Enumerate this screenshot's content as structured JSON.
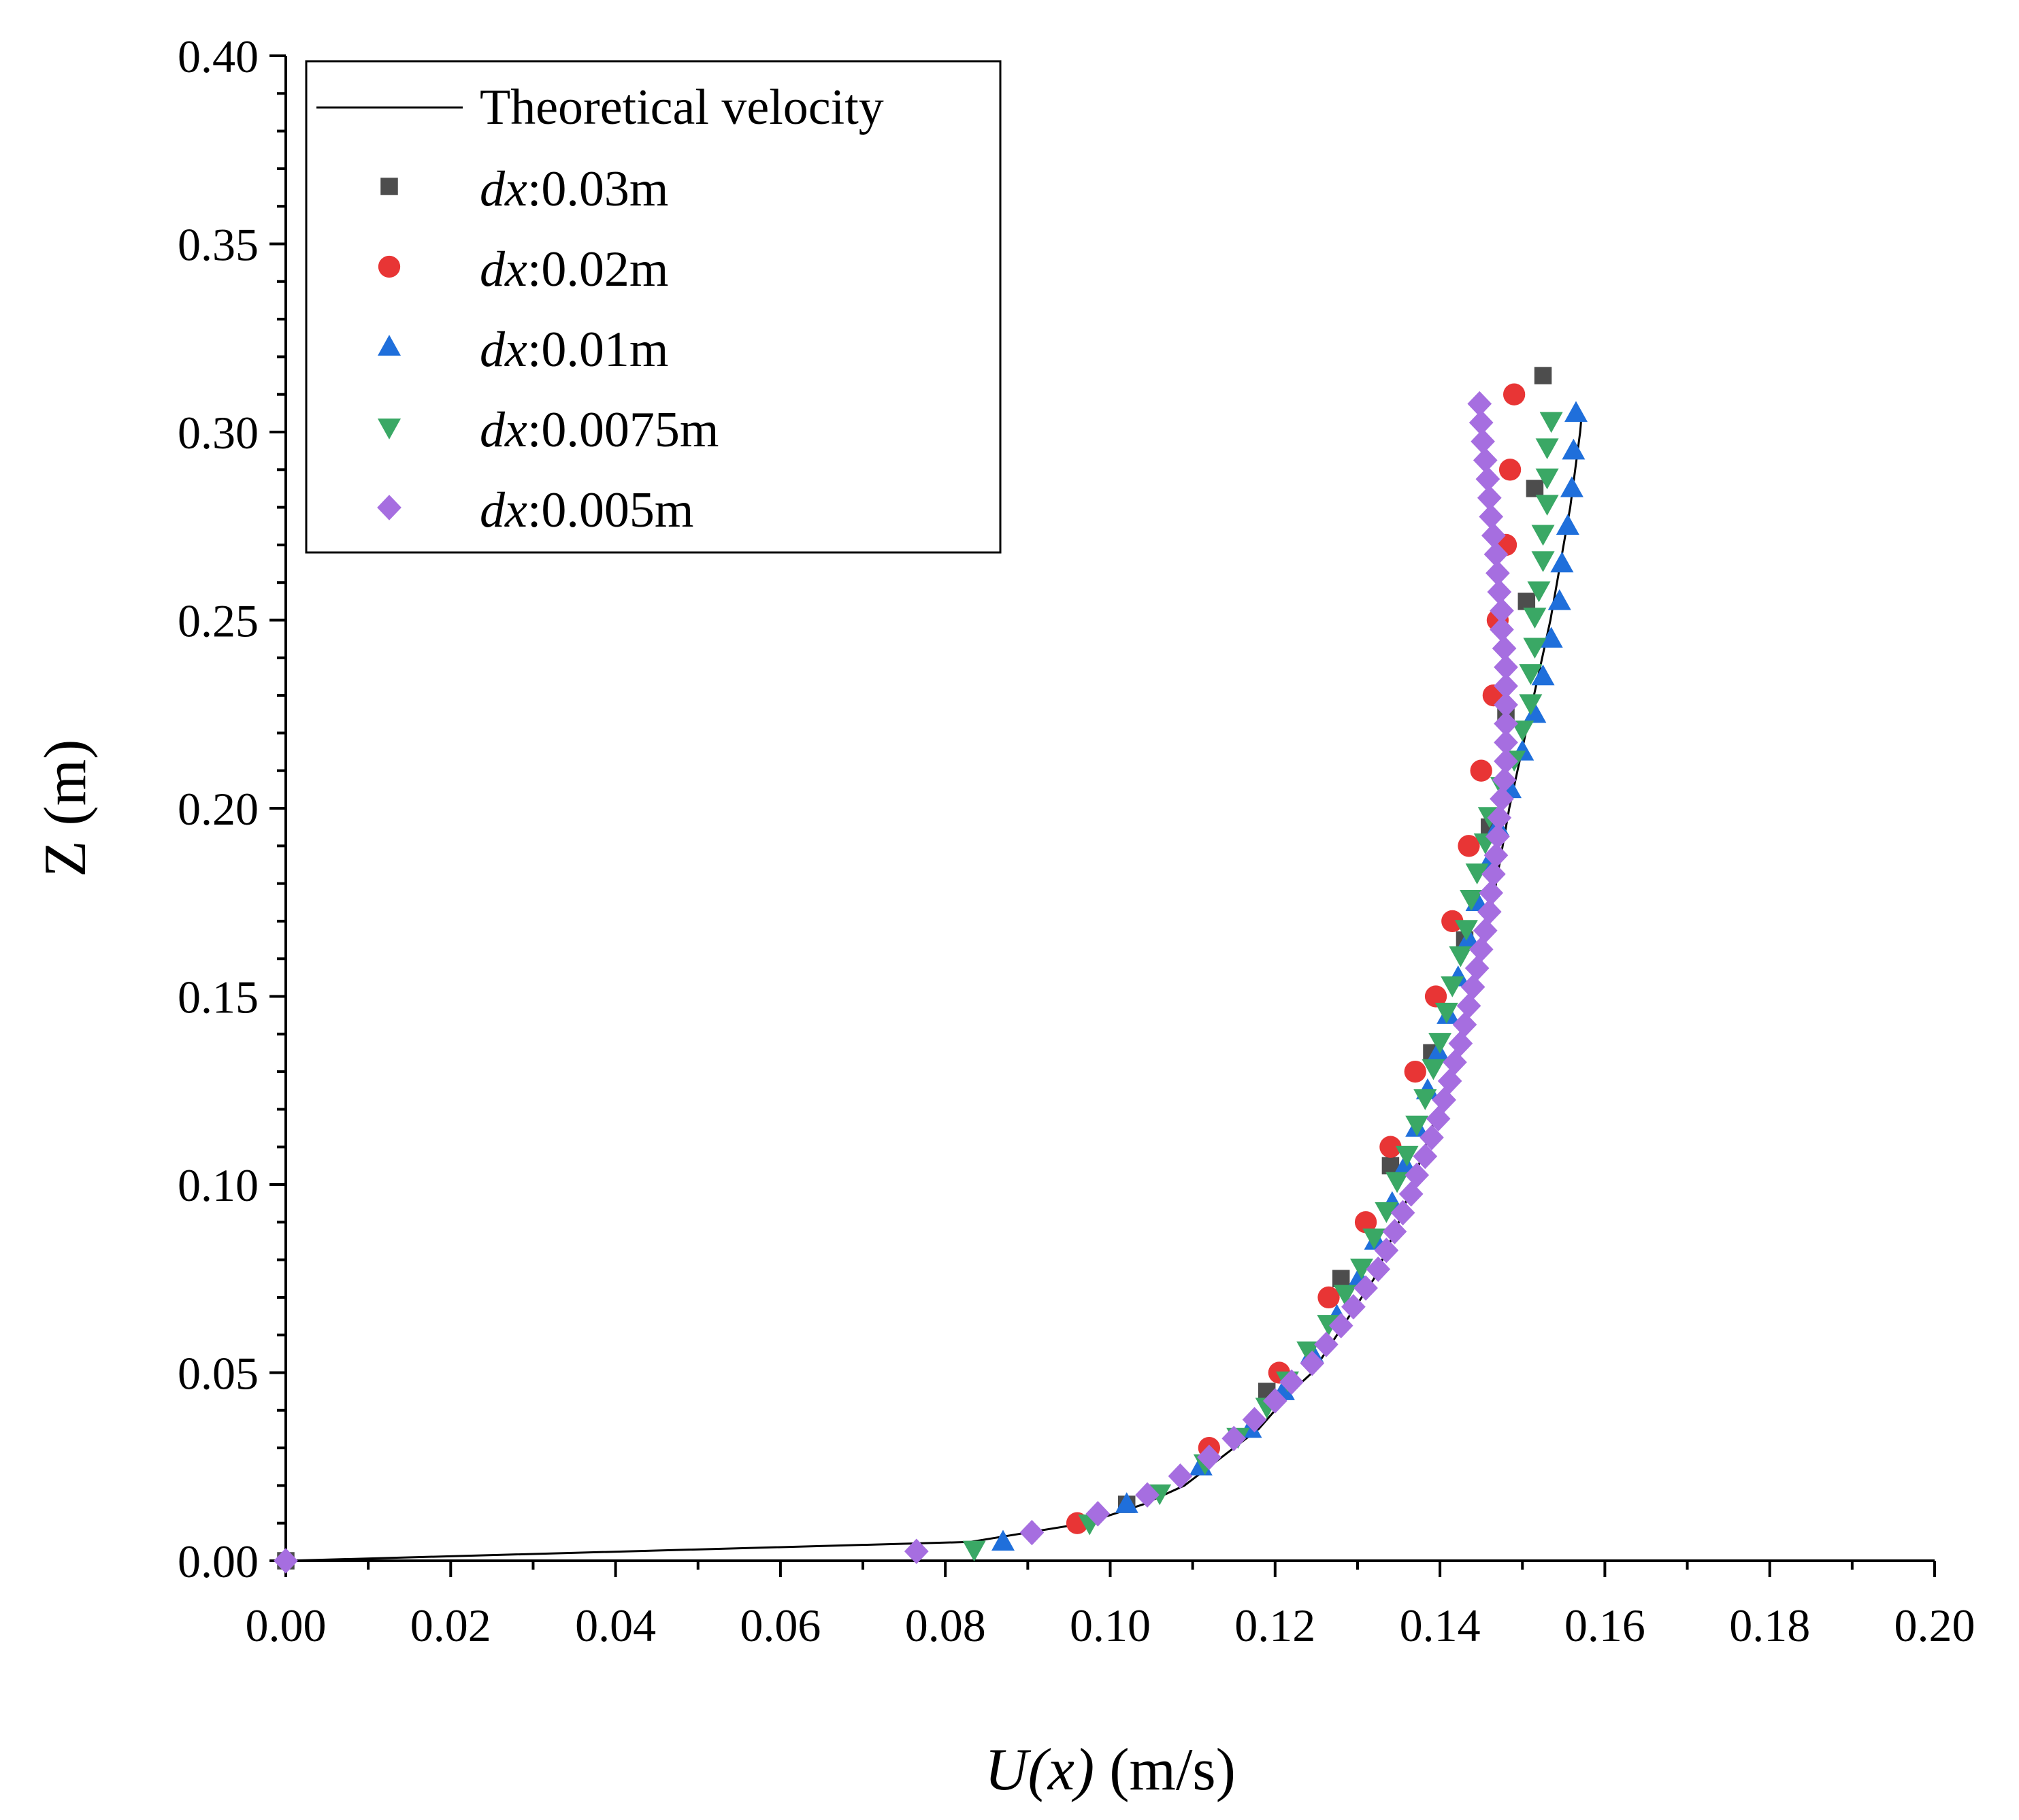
{
  "chart_data": {
    "type": "scatter",
    "title": "",
    "xlabel_italic": "U(x)",
    "xlabel_unit": " (m/s)",
    "ylabel": "Z (m)",
    "xlim": [
      0,
      0.2
    ],
    "ylim": [
      0,
      0.4
    ],
    "x_ticks": [
      "0.00",
      "0.02",
      "0.04",
      "0.06",
      "0.08",
      "0.10",
      "0.12",
      "0.14",
      "0.16",
      "0.18",
      "0.20"
    ],
    "y_ticks": [
      "0.00",
      "0.05",
      "0.10",
      "0.15",
      "0.20",
      "0.25",
      "0.30",
      "0.35",
      "0.40"
    ],
    "legend_position": "top-left",
    "series": [
      {
        "name": "Theoretical velocity",
        "kind": "line",
        "color": "#000000",
        "points": [
          [
            0.0,
            0.0
          ],
          [
            0.083,
            0.005
          ],
          [
            0.097,
            0.01
          ],
          [
            0.104,
            0.015
          ],
          [
            0.109,
            0.02
          ],
          [
            0.112,
            0.025
          ],
          [
            0.115,
            0.03
          ],
          [
            0.118,
            0.035
          ],
          [
            0.12,
            0.04
          ],
          [
            0.122,
            0.045
          ],
          [
            0.1245,
            0.05
          ],
          [
            0.126,
            0.055
          ],
          [
            0.1275,
            0.06
          ],
          [
            0.129,
            0.065
          ],
          [
            0.1305,
            0.07
          ],
          [
            0.132,
            0.075
          ],
          [
            0.133,
            0.08
          ],
          [
            0.134,
            0.085
          ],
          [
            0.135,
            0.09
          ],
          [
            0.1358,
            0.095
          ],
          [
            0.1366,
            0.1
          ],
          [
            0.1374,
            0.105
          ],
          [
            0.1382,
            0.11
          ],
          [
            0.139,
            0.115
          ],
          [
            0.1398,
            0.12
          ],
          [
            0.1406,
            0.125
          ],
          [
            0.1412,
            0.13
          ],
          [
            0.1418,
            0.135
          ],
          [
            0.1424,
            0.14
          ],
          [
            0.143,
            0.145
          ],
          [
            0.1436,
            0.15
          ],
          [
            0.1442,
            0.155
          ],
          [
            0.1448,
            0.16
          ],
          [
            0.1454,
            0.165
          ],
          [
            0.146,
            0.17
          ],
          [
            0.1468,
            0.18
          ],
          [
            0.1476,
            0.19
          ],
          [
            0.1484,
            0.2
          ],
          [
            0.1494,
            0.21
          ],
          [
            0.1504,
            0.22
          ],
          [
            0.1514,
            0.23
          ],
          [
            0.1524,
            0.24
          ],
          [
            0.1534,
            0.25
          ],
          [
            0.1542,
            0.26
          ],
          [
            0.155,
            0.27
          ],
          [
            0.1558,
            0.28
          ],
          [
            0.1564,
            0.29
          ],
          [
            0.157,
            0.3
          ],
          [
            0.1572,
            0.305
          ]
        ]
      },
      {
        "name": "0.03m",
        "prefix": "dx",
        "kind": "scatter",
        "marker": "square",
        "color": "#4d4d4d",
        "points": [
          [
            0.0,
            0.0
          ],
          [
            0.102,
            0.015
          ],
          [
            0.119,
            0.045
          ],
          [
            0.128,
            0.075
          ],
          [
            0.134,
            0.105
          ],
          [
            0.139,
            0.135
          ],
          [
            0.143,
            0.165
          ],
          [
            0.146,
            0.195
          ],
          [
            0.148,
            0.225
          ],
          [
            0.1505,
            0.255
          ],
          [
            0.1515,
            0.285
          ],
          [
            0.1525,
            0.315
          ]
        ]
      },
      {
        "name": "0.02m",
        "prefix": "dx",
        "kind": "scatter",
        "marker": "circle",
        "color": "#e83535",
        "points": [
          [
            0.096,
            0.01
          ],
          [
            0.112,
            0.03
          ],
          [
            0.1205,
            0.05
          ],
          [
            0.1265,
            0.07
          ],
          [
            0.131,
            0.09
          ],
          [
            0.134,
            0.11
          ],
          [
            0.137,
            0.13
          ],
          [
            0.1395,
            0.15
          ],
          [
            0.1415,
            0.17
          ],
          [
            0.1435,
            0.19
          ],
          [
            0.145,
            0.21
          ],
          [
            0.1465,
            0.23
          ],
          [
            0.147,
            0.25
          ],
          [
            0.148,
            0.27
          ],
          [
            0.1485,
            0.29
          ],
          [
            0.149,
            0.31
          ]
        ]
      },
      {
        "name": "0.01m",
        "prefix": "dx",
        "kind": "scatter",
        "marker": "triangle-up",
        "color": "#1f6fdb",
        "points": [
          [
            0.087,
            0.005
          ],
          [
            0.102,
            0.015
          ],
          [
            0.111,
            0.025
          ],
          [
            0.117,
            0.035
          ],
          [
            0.121,
            0.045
          ],
          [
            0.1245,
            0.055
          ],
          [
            0.1275,
            0.065
          ],
          [
            0.1302,
            0.075
          ],
          [
            0.1322,
            0.085
          ],
          [
            0.1342,
            0.095
          ],
          [
            0.1358,
            0.105
          ],
          [
            0.1372,
            0.115
          ],
          [
            0.1385,
            0.125
          ],
          [
            0.1398,
            0.135
          ],
          [
            0.141,
            0.145
          ],
          [
            0.1422,
            0.155
          ],
          [
            0.1435,
            0.165
          ],
          [
            0.1445,
            0.175
          ],
          [
            0.1458,
            0.185
          ],
          [
            0.147,
            0.195
          ],
          [
            0.1485,
            0.205
          ],
          [
            0.15,
            0.215
          ],
          [
            0.1515,
            0.225
          ],
          [
            0.1525,
            0.235
          ],
          [
            0.1535,
            0.245
          ],
          [
            0.1545,
            0.255
          ],
          [
            0.1548,
            0.265
          ],
          [
            0.1555,
            0.275
          ],
          [
            0.156,
            0.285
          ],
          [
            0.1562,
            0.295
          ],
          [
            0.1565,
            0.305
          ]
        ]
      },
      {
        "name": "0.0075m",
        "prefix": "dx",
        "kind": "scatter",
        "marker": "triangle-down",
        "color": "#3aa865",
        "points": [
          [
            0.0835,
            0.003
          ],
          [
            0.0975,
            0.01
          ],
          [
            0.106,
            0.018
          ],
          [
            0.1115,
            0.026
          ],
          [
            0.1155,
            0.033
          ],
          [
            0.119,
            0.041
          ],
          [
            0.1215,
            0.048
          ],
          [
            0.124,
            0.056
          ],
          [
            0.1265,
            0.063
          ],
          [
            0.1285,
            0.071
          ],
          [
            0.1305,
            0.078
          ],
          [
            0.132,
            0.086
          ],
          [
            0.1335,
            0.093
          ],
          [
            0.1348,
            0.101
          ],
          [
            0.136,
            0.108
          ],
          [
            0.1372,
            0.116
          ],
          [
            0.1382,
            0.123
          ],
          [
            0.1392,
            0.131
          ],
          [
            0.14,
            0.138
          ],
          [
            0.1408,
            0.146
          ],
          [
            0.1415,
            0.153
          ],
          [
            0.1425,
            0.161
          ],
          [
            0.1432,
            0.168
          ],
          [
            0.1438,
            0.176
          ],
          [
            0.1445,
            0.183
          ],
          [
            0.1455,
            0.191
          ],
          [
            0.146,
            0.198
          ],
          [
            0.1475,
            0.206
          ],
          [
            0.149,
            0.213
          ],
          [
            0.15,
            0.221
          ],
          [
            0.151,
            0.228
          ],
          [
            0.151,
            0.236
          ],
          [
            0.1515,
            0.243
          ],
          [
            0.1515,
            0.251
          ],
          [
            0.152,
            0.258
          ],
          [
            0.1525,
            0.266
          ],
          [
            0.1525,
            0.273
          ],
          [
            0.153,
            0.281
          ],
          [
            0.153,
            0.288
          ],
          [
            0.153,
            0.296
          ],
          [
            0.1535,
            0.303
          ]
        ]
      },
      {
        "name": "0.005m",
        "prefix": "dx",
        "kind": "scatter",
        "marker": "diamond",
        "color": "#a66ee0",
        "points": [
          [
            0.0,
            0.0
          ],
          [
            0.0765,
            0.0025
          ],
          [
            0.0905,
            0.0075
          ],
          [
            0.0985,
            0.0125
          ],
          [
            0.1045,
            0.0175
          ],
          [
            0.1085,
            0.0225
          ],
          [
            0.112,
            0.0275
          ],
          [
            0.115,
            0.0325
          ],
          [
            0.1175,
            0.0375
          ],
          [
            0.12,
            0.0425
          ],
          [
            0.122,
            0.0475
          ],
          [
            0.1245,
            0.0525
          ],
          [
            0.1262,
            0.0575
          ],
          [
            0.128,
            0.0625
          ],
          [
            0.1295,
            0.0675
          ],
          [
            0.131,
            0.0725
          ],
          [
            0.1325,
            0.0775
          ],
          [
            0.1335,
            0.0825
          ],
          [
            0.1345,
            0.0875
          ],
          [
            0.1355,
            0.0925
          ],
          [
            0.1365,
            0.0975
          ],
          [
            0.1372,
            0.1025
          ],
          [
            0.1382,
            0.1075
          ],
          [
            0.139,
            0.1125
          ],
          [
            0.1398,
            0.1175
          ],
          [
            0.1405,
            0.1225
          ],
          [
            0.1412,
            0.1275
          ],
          [
            0.1418,
            0.1325
          ],
          [
            0.1425,
            0.1375
          ],
          [
            0.143,
            0.1425
          ],
          [
            0.1435,
            0.1475
          ],
          [
            0.144,
            0.1525
          ],
          [
            0.1445,
            0.1575
          ],
          [
            0.145,
            0.1625
          ],
          [
            0.1455,
            0.1675
          ],
          [
            0.146,
            0.1725
          ],
          [
            0.1462,
            0.1775
          ],
          [
            0.1465,
            0.1825
          ],
          [
            0.1468,
            0.1875
          ],
          [
            0.147,
            0.1925
          ],
          [
            0.1472,
            0.1975
          ],
          [
            0.1475,
            0.2025
          ],
          [
            0.1478,
            0.2075
          ],
          [
            0.148,
            0.2125
          ],
          [
            0.148,
            0.2175
          ],
          [
            0.148,
            0.2225
          ],
          [
            0.148,
            0.2275
          ],
          [
            0.148,
            0.2325
          ],
          [
            0.148,
            0.2375
          ],
          [
            0.1478,
            0.2425
          ],
          [
            0.1475,
            0.2475
          ],
          [
            0.1475,
            0.2525
          ],
          [
            0.1472,
            0.2575
          ],
          [
            0.147,
            0.2625
          ],
          [
            0.1468,
            0.2675
          ],
          [
            0.1465,
            0.2725
          ],
          [
            0.1462,
            0.2775
          ],
          [
            0.146,
            0.2825
          ],
          [
            0.1458,
            0.2875
          ],
          [
            0.1455,
            0.2925
          ],
          [
            0.1452,
            0.2975
          ],
          [
            0.145,
            0.3025
          ],
          [
            0.1448,
            0.3075
          ]
        ]
      }
    ]
  }
}
